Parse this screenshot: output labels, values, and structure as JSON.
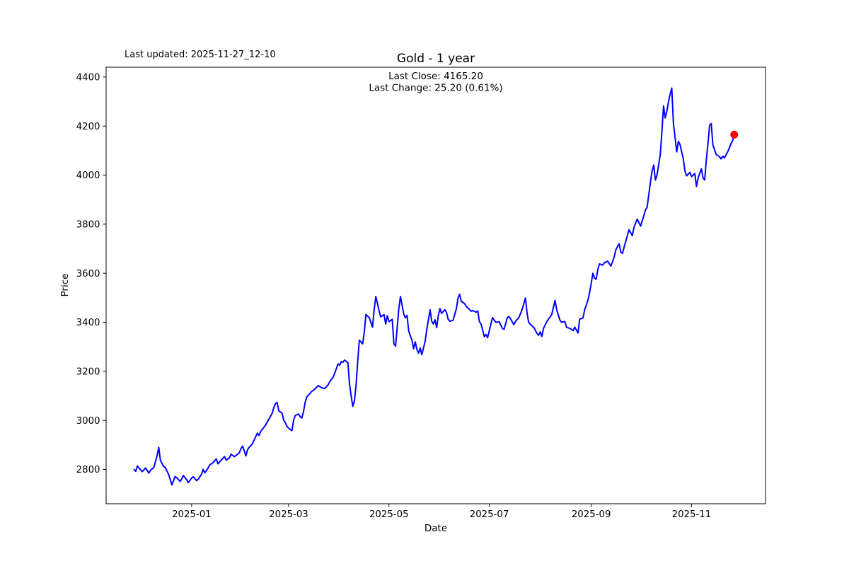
{
  "chart_data": {
    "type": "line",
    "title": "Gold - 1 year",
    "xlabel": "Date",
    "ylabel": "Price",
    "annotation_top_left": "Last updated: 2025-11-27_12-10",
    "info_lines": [
      "Last Close: 4165.20",
      "Last Change: 25.20 (0.61%)"
    ],
    "last_close": 4165.2,
    "last_change": 25.2,
    "last_change_pct": 0.61,
    "line_color": "#0000ff",
    "marker_color": "#ff0000",
    "grid": false,
    "ylim": [
      2660,
      4440
    ],
    "xlim": [
      "2024-11-10",
      "2025-12-16"
    ],
    "y_ticks": [
      2800,
      3000,
      3200,
      3400,
      3600,
      3800,
      4000,
      4200,
      4400
    ],
    "x_ticks": [
      {
        "label": "2025-01",
        "date": "2025-01-01"
      },
      {
        "label": "2025-03",
        "date": "2025-03-01"
      },
      {
        "label": "2025-05",
        "date": "2025-05-01"
      },
      {
        "label": "2025-07",
        "date": "2025-07-01"
      },
      {
        "label": "2025-09",
        "date": "2025-09-01"
      },
      {
        "label": "2025-11",
        "date": "2025-11-01"
      }
    ],
    "series": [
      {
        "name": "Gold",
        "points": [
          [
            "2024-11-27",
            2800
          ],
          [
            "2024-11-28",
            2792
          ],
          [
            "2024-11-29",
            2814
          ],
          [
            "2024-12-01",
            2798
          ],
          [
            "2024-12-02",
            2791
          ],
          [
            "2024-12-04",
            2806
          ],
          [
            "2024-12-06",
            2785
          ],
          [
            "2024-12-07",
            2797
          ],
          [
            "2024-12-09",
            2808
          ],
          [
            "2024-12-11",
            2855
          ],
          [
            "2024-12-12",
            2890
          ],
          [
            "2024-12-13",
            2837
          ],
          [
            "2024-12-15",
            2812
          ],
          [
            "2024-12-16",
            2807
          ],
          [
            "2024-12-18",
            2780
          ],
          [
            "2024-12-20",
            2737
          ],
          [
            "2024-12-22",
            2771
          ],
          [
            "2024-12-23",
            2766
          ],
          [
            "2024-12-25",
            2751
          ],
          [
            "2024-12-26",
            2762
          ],
          [
            "2024-12-27",
            2775
          ],
          [
            "2024-12-29",
            2757
          ],
          [
            "2024-12-30",
            2746
          ],
          [
            "2025-01-01",
            2765
          ],
          [
            "2025-01-02",
            2770
          ],
          [
            "2025-01-04",
            2754
          ],
          [
            "2025-01-05",
            2760
          ],
          [
            "2025-01-07",
            2780
          ],
          [
            "2025-01-08",
            2800
          ],
          [
            "2025-01-09",
            2786
          ],
          [
            "2025-01-11",
            2805
          ],
          [
            "2025-01-12",
            2818
          ],
          [
            "2025-01-14",
            2828
          ],
          [
            "2025-01-16",
            2843
          ],
          [
            "2025-01-17",
            2823
          ],
          [
            "2025-01-19",
            2838
          ],
          [
            "2025-01-21",
            2852
          ],
          [
            "2025-01-22",
            2838
          ],
          [
            "2025-01-24",
            2847
          ],
          [
            "2025-01-25",
            2862
          ],
          [
            "2025-01-27",
            2852
          ],
          [
            "2025-01-28",
            2857
          ],
          [
            "2025-01-30",
            2868
          ],
          [
            "2025-01-31",
            2885
          ],
          [
            "2025-02-01",
            2895
          ],
          [
            "2025-02-03",
            2855
          ],
          [
            "2025-02-04",
            2880
          ],
          [
            "2025-02-05",
            2890
          ],
          [
            "2025-02-07",
            2905
          ],
          [
            "2025-02-08",
            2920
          ],
          [
            "2025-02-10",
            2948
          ],
          [
            "2025-02-11",
            2938
          ],
          [
            "2025-02-12",
            2955
          ],
          [
            "2025-02-14",
            2972
          ],
          [
            "2025-02-15",
            2981
          ],
          [
            "2025-02-17",
            3005
          ],
          [
            "2025-02-19",
            3029
          ],
          [
            "2025-02-20",
            3053
          ],
          [
            "2025-02-21",
            3068
          ],
          [
            "2025-02-22",
            3073
          ],
          [
            "2025-02-23",
            3039
          ],
          [
            "2025-02-25",
            3029
          ],
          [
            "2025-02-26",
            3000
          ],
          [
            "2025-02-27",
            2990
          ],
          [
            "2025-02-28",
            2975
          ],
          [
            "2025-03-02",
            2962
          ],
          [
            "2025-03-03",
            2958
          ],
          [
            "2025-03-04",
            3000
          ],
          [
            "2025-03-05",
            3020
          ],
          [
            "2025-03-07",
            3026
          ],
          [
            "2025-03-08",
            3015
          ],
          [
            "2025-03-09",
            3010
          ],
          [
            "2025-03-10",
            3034
          ],
          [
            "2025-03-11",
            3072
          ],
          [
            "2025-03-12",
            3096
          ],
          [
            "2025-03-14",
            3110
          ],
          [
            "2025-03-15",
            3118
          ],
          [
            "2025-03-16",
            3122
          ],
          [
            "2025-03-18",
            3135
          ],
          [
            "2025-03-19",
            3142
          ],
          [
            "2025-03-21",
            3133
          ],
          [
            "2025-03-23",
            3130
          ],
          [
            "2025-03-25",
            3145
          ],
          [
            "2025-03-26",
            3158
          ],
          [
            "2025-03-28",
            3175
          ],
          [
            "2025-03-29",
            3192
          ],
          [
            "2025-03-31",
            3230
          ],
          [
            "2025-04-01",
            3225
          ],
          [
            "2025-04-02",
            3240
          ],
          [
            "2025-04-03",
            3237
          ],
          [
            "2025-04-04",
            3246
          ],
          [
            "2025-04-06",
            3235
          ],
          [
            "2025-04-07",
            3150
          ],
          [
            "2025-04-08",
            3100
          ],
          [
            "2025-04-09",
            3057
          ],
          [
            "2025-04-10",
            3080
          ],
          [
            "2025-04-11",
            3144
          ],
          [
            "2025-04-12",
            3240
          ],
          [
            "2025-04-13",
            3327
          ],
          [
            "2025-04-15",
            3312
          ],
          [
            "2025-04-16",
            3360
          ],
          [
            "2025-04-17",
            3432
          ],
          [
            "2025-04-18",
            3425
          ],
          [
            "2025-04-19",
            3419
          ],
          [
            "2025-04-21",
            3380
          ],
          [
            "2025-04-22",
            3450
          ],
          [
            "2025-04-23",
            3505
          ],
          [
            "2025-04-25",
            3447
          ],
          [
            "2025-04-26",
            3422
          ],
          [
            "2025-04-28",
            3431
          ],
          [
            "2025-04-29",
            3393
          ],
          [
            "2025-04-30",
            3427
          ],
          [
            "2025-05-01",
            3403
          ],
          [
            "2025-05-03",
            3412
          ],
          [
            "2025-05-04",
            3312
          ],
          [
            "2025-05-05",
            3303
          ],
          [
            "2025-05-06",
            3378
          ],
          [
            "2025-05-07",
            3456
          ],
          [
            "2025-05-08",
            3505
          ],
          [
            "2025-05-10",
            3433
          ],
          [
            "2025-05-11",
            3418
          ],
          [
            "2025-05-12",
            3428
          ],
          [
            "2025-05-13",
            3364
          ],
          [
            "2025-05-14",
            3345
          ],
          [
            "2025-05-15",
            3327
          ],
          [
            "2025-05-16",
            3292
          ],
          [
            "2025-05-17",
            3320
          ],
          [
            "2025-05-18",
            3289
          ],
          [
            "2025-05-19",
            3274
          ],
          [
            "2025-05-20",
            3295
          ],
          [
            "2025-05-21",
            3268
          ],
          [
            "2025-05-23",
            3322
          ],
          [
            "2025-05-24",
            3370
          ],
          [
            "2025-05-26",
            3451
          ],
          [
            "2025-05-27",
            3404
          ],
          [
            "2025-05-28",
            3393
          ],
          [
            "2025-05-29",
            3410
          ],
          [
            "2025-05-30",
            3378
          ],
          [
            "2025-05-31",
            3427
          ],
          [
            "2025-06-01",
            3456
          ],
          [
            "2025-06-02",
            3436
          ],
          [
            "2025-06-04",
            3451
          ],
          [
            "2025-06-05",
            3440
          ],
          [
            "2025-06-06",
            3413
          ],
          [
            "2025-06-07",
            3404
          ],
          [
            "2025-06-09",
            3408
          ],
          [
            "2025-06-11",
            3456
          ],
          [
            "2025-06-12",
            3499
          ],
          [
            "2025-06-13",
            3514
          ],
          [
            "2025-06-14",
            3485
          ],
          [
            "2025-06-16",
            3476
          ],
          [
            "2025-06-17",
            3465
          ],
          [
            "2025-06-19",
            3452
          ],
          [
            "2025-06-20",
            3445
          ],
          [
            "2025-06-21",
            3448
          ],
          [
            "2025-06-23",
            3441
          ],
          [
            "2025-06-24",
            3446
          ],
          [
            "2025-06-25",
            3403
          ],
          [
            "2025-06-26",
            3393
          ],
          [
            "2025-06-28",
            3341
          ],
          [
            "2025-06-29",
            3350
          ],
          [
            "2025-06-30",
            3337
          ],
          [
            "2025-07-02",
            3394
          ],
          [
            "2025-07-03",
            3419
          ],
          [
            "2025-07-04",
            3409
          ],
          [
            "2025-07-05",
            3400
          ],
          [
            "2025-07-07",
            3402
          ],
          [
            "2025-07-09",
            3375
          ],
          [
            "2025-07-10",
            3371
          ],
          [
            "2025-07-12",
            3419
          ],
          [
            "2025-07-13",
            3423
          ],
          [
            "2025-07-14",
            3413
          ],
          [
            "2025-07-16",
            3390
          ],
          [
            "2025-07-17",
            3404
          ],
          [
            "2025-07-19",
            3419
          ],
          [
            "2025-07-21",
            3452
          ],
          [
            "2025-07-23",
            3499
          ],
          [
            "2025-07-24",
            3437
          ],
          [
            "2025-07-25",
            3399
          ],
          [
            "2025-07-27",
            3385
          ],
          [
            "2025-07-28",
            3380
          ],
          [
            "2025-07-30",
            3355
          ],
          [
            "2025-07-31",
            3347
          ],
          [
            "2025-08-01",
            3361
          ],
          [
            "2025-08-02",
            3342
          ],
          [
            "2025-08-03",
            3375
          ],
          [
            "2025-08-05",
            3403
          ],
          [
            "2025-08-07",
            3422
          ],
          [
            "2025-08-08",
            3432
          ],
          [
            "2025-08-10",
            3489
          ],
          [
            "2025-08-11",
            3451
          ],
          [
            "2025-08-13",
            3408
          ],
          [
            "2025-08-14",
            3400
          ],
          [
            "2025-08-16",
            3403
          ],
          [
            "2025-08-17",
            3380
          ],
          [
            "2025-08-19",
            3375
          ],
          [
            "2025-08-21",
            3366
          ],
          [
            "2025-08-22",
            3380
          ],
          [
            "2025-08-24",
            3356
          ],
          [
            "2025-08-25",
            3413
          ],
          [
            "2025-08-27",
            3417
          ],
          [
            "2025-08-28",
            3450
          ],
          [
            "2025-08-30",
            3490
          ],
          [
            "2025-08-31",
            3520
          ],
          [
            "2025-09-01",
            3558
          ],
          [
            "2025-09-02",
            3600
          ],
          [
            "2025-09-03",
            3580
          ],
          [
            "2025-09-04",
            3575
          ],
          [
            "2025-09-05",
            3614
          ],
          [
            "2025-09-06",
            3638
          ],
          [
            "2025-09-08",
            3633
          ],
          [
            "2025-09-09",
            3643
          ],
          [
            "2025-09-11",
            3649
          ],
          [
            "2025-09-13",
            3629
          ],
          [
            "2025-09-15",
            3667
          ],
          [
            "2025-09-16",
            3696
          ],
          [
            "2025-09-18",
            3720
          ],
          [
            "2025-09-19",
            3686
          ],
          [
            "2025-09-20",
            3681
          ],
          [
            "2025-09-22",
            3730
          ],
          [
            "2025-09-24",
            3777
          ],
          [
            "2025-09-26",
            3753
          ],
          [
            "2025-09-27",
            3787
          ],
          [
            "2025-09-29",
            3821
          ],
          [
            "2025-10-01",
            3792
          ],
          [
            "2025-10-03",
            3835
          ],
          [
            "2025-10-04",
            3858
          ],
          [
            "2025-10-05",
            3870
          ],
          [
            "2025-10-06",
            3920
          ],
          [
            "2025-10-07",
            3970
          ],
          [
            "2025-10-08",
            4015
          ],
          [
            "2025-10-09",
            4041
          ],
          [
            "2025-10-10",
            3980
          ],
          [
            "2025-10-11",
            4000
          ],
          [
            "2025-10-13",
            4085
          ],
          [
            "2025-10-14",
            4180
          ],
          [
            "2025-10-15",
            4282
          ],
          [
            "2025-10-16",
            4233
          ],
          [
            "2025-10-17",
            4260
          ],
          [
            "2025-10-18",
            4300
          ],
          [
            "2025-10-19",
            4330
          ],
          [
            "2025-10-20",
            4355
          ],
          [
            "2025-10-21",
            4213
          ],
          [
            "2025-10-23",
            4095
          ],
          [
            "2025-10-24",
            4138
          ],
          [
            "2025-10-25",
            4125
          ],
          [
            "2025-10-27",
            4066
          ],
          [
            "2025-10-28",
            4017
          ],
          [
            "2025-10-29",
            3997
          ],
          [
            "2025-10-31",
            4011
          ],
          [
            "2025-11-01",
            3994
          ],
          [
            "2025-11-03",
            4006
          ],
          [
            "2025-11-04",
            3954
          ],
          [
            "2025-11-05",
            3988
          ],
          [
            "2025-11-07",
            4026
          ],
          [
            "2025-11-08",
            3988
          ],
          [
            "2025-11-09",
            3980
          ],
          [
            "2025-11-10",
            4060
          ],
          [
            "2025-11-11",
            4130
          ],
          [
            "2025-11-12",
            4204
          ],
          [
            "2025-11-13",
            4210
          ],
          [
            "2025-11-14",
            4123
          ],
          [
            "2025-11-16",
            4084
          ],
          [
            "2025-11-17",
            4080
          ],
          [
            "2025-11-18",
            4075
          ],
          [
            "2025-11-19",
            4066
          ],
          [
            "2025-11-20",
            4077
          ],
          [
            "2025-11-21",
            4070
          ],
          [
            "2025-11-23",
            4095
          ],
          [
            "2025-11-24",
            4112
          ],
          [
            "2025-11-25",
            4128
          ],
          [
            "2025-11-26",
            4140
          ],
          [
            "2025-11-27",
            4165.2
          ]
        ]
      }
    ]
  }
}
